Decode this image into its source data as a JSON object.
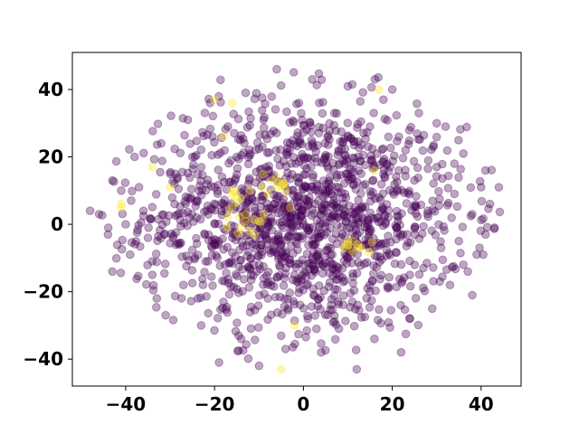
{
  "chart_data": {
    "type": "scatter",
    "title": "",
    "xlabel": "",
    "ylabel": "",
    "xlim": [
      -52,
      49
    ],
    "ylim": [
      -48,
      51
    ],
    "xticks": [
      -40,
      -20,
      0,
      20,
      40
    ],
    "yticks": [
      -40,
      -20,
      0,
      20,
      40
    ],
    "xtick_labels": [
      "−40",
      "−20",
      "0",
      "20",
      "40"
    ],
    "ytick_labels": [
      "−40",
      "−20",
      "0",
      "20",
      "40"
    ],
    "grid": false,
    "legend": "none",
    "marker_alpha": 0.35,
    "colors": {
      "majority": "#440154",
      "minority": "#fde725"
    },
    "series": [
      {
        "color": "#440154",
        "description_count": 1450,
        "distribution": "roughly elliptical cloud centred near (0, 2), x span about -48 to 44, y span about -43 to 47",
        "points_sample": [
          [
            -48,
            4
          ],
          [
            -46,
            3
          ],
          [
            -43,
            13
          ],
          [
            -44,
            -3
          ],
          [
            -43,
            -14
          ],
          [
            -41,
            10
          ],
          [
            -40,
            0
          ],
          [
            -39,
            -9
          ],
          [
            -38,
            20
          ],
          [
            -37,
            11
          ],
          [
            -36,
            4
          ],
          [
            -35,
            -4
          ],
          [
            -34,
            -15
          ],
          [
            -33,
            -22
          ],
          [
            -32,
            24
          ],
          [
            -31,
            -27
          ],
          [
            -30,
            15
          ],
          [
            -29,
            6
          ],
          [
            -28,
            -6
          ],
          [
            -27,
            -18
          ],
          [
            -26,
            31
          ],
          [
            -25,
            20
          ],
          [
            -24,
            2
          ],
          [
            -23,
            -30
          ],
          [
            -22,
            -11
          ],
          [
            -21,
            36
          ],
          [
            -20,
            11
          ],
          [
            -19,
            -41
          ],
          [
            -18,
            -23
          ],
          [
            -17,
            29
          ],
          [
            -16,
            -4
          ],
          [
            -15,
            20
          ],
          [
            -14,
            -34
          ],
          [
            -13,
            39
          ],
          [
            -12,
            -13
          ],
          [
            -11,
            5
          ],
          [
            -10,
            -42
          ],
          [
            -9,
            31
          ],
          [
            -8,
            -22
          ],
          [
            -7,
            14
          ],
          [
            -6,
            46
          ],
          [
            -5,
            -6
          ],
          [
            -4,
            -37
          ],
          [
            -3,
            24
          ],
          [
            -2,
            -15
          ],
          [
            -1,
            36
          ],
          [
            0,
            0
          ],
          [
            1,
            -28
          ],
          [
            2,
            43
          ],
          [
            3,
            12
          ],
          [
            4,
            -38
          ],
          [
            5,
            20
          ],
          [
            6,
            -11
          ],
          [
            7,
            33
          ],
          [
            8,
            -31
          ],
          [
            9,
            3
          ],
          [
            10,
            41
          ],
          [
            11,
            -23
          ],
          [
            12,
            -43
          ],
          [
            13,
            15
          ],
          [
            14,
            -6
          ],
          [
            15,
            29
          ],
          [
            16,
            -34
          ],
          [
            17,
            8
          ],
          [
            18,
            37
          ],
          [
            19,
            -19
          ],
          [
            20,
            40
          ],
          [
            21,
            -1
          ],
          [
            22,
            -38
          ],
          [
            23,
            22
          ],
          [
            24,
            -28
          ],
          [
            25,
            13
          ],
          [
            26,
            33
          ],
          [
            27,
            -13
          ],
          [
            28,
            4
          ],
          [
            29,
            -25
          ],
          [
            30,
            17
          ],
          [
            31,
            -7
          ],
          [
            32,
            29
          ],
          [
            33,
            -18
          ],
          [
            34,
            9
          ],
          [
            35,
            -5
          ],
          [
            36,
            21
          ],
          [
            37,
            -14
          ],
          [
            38,
            3
          ],
          [
            39,
            -9
          ],
          [
            40,
            11
          ],
          [
            41,
            -3
          ],
          [
            42,
            6
          ],
          [
            43,
            -1
          ],
          [
            44,
            11
          ],
          [
            41,
            16
          ],
          [
            38,
            -21
          ],
          [
            36,
            -12
          ],
          [
            34,
            18
          ],
          [
            30,
            30
          ]
        ]
      },
      {
        "color": "#fde725",
        "description_count": 55,
        "clusters": [
          {
            "center": [
              -13,
              0
            ],
            "spread": 4
          },
          {
            "center": [
              -6,
              11
            ],
            "spread": 2.5
          },
          {
            "center": [
              11,
              -7
            ],
            "spread": 2.5
          },
          {
            "center": [
              -16,
              8
            ],
            "spread": 1.5
          }
        ],
        "points_sample": [
          [
            -41,
            6
          ],
          [
            -41,
            5
          ],
          [
            -34,
            17
          ],
          [
            -30,
            11
          ],
          [
            -20,
            37
          ],
          [
            -16,
            36
          ],
          [
            -18,
            26
          ],
          [
            -16,
            10
          ],
          [
            -15,
            8
          ],
          [
            -13,
            1
          ],
          [
            -12,
            -2
          ],
          [
            -10,
            1
          ],
          [
            -9,
            3
          ],
          [
            -14,
            -1
          ],
          [
            -13,
            3
          ],
          [
            -11,
            -3
          ],
          [
            -7,
            13
          ],
          [
            -6,
            11
          ],
          [
            -5,
            12
          ],
          [
            -4,
            10
          ],
          [
            -6,
            14
          ],
          [
            -3,
            5
          ],
          [
            -2,
            -30
          ],
          [
            -5,
            -43
          ],
          [
            9,
            -7
          ],
          [
            10,
            -6
          ],
          [
            11,
            -8
          ],
          [
            12,
            -6
          ],
          [
            13,
            -7
          ],
          [
            10,
            -5
          ],
          [
            16,
            16
          ],
          [
            17,
            40
          ],
          [
            -17,
            2
          ],
          [
            -12,
            10
          ],
          [
            -8,
            9
          ]
        ]
      }
    ]
  }
}
